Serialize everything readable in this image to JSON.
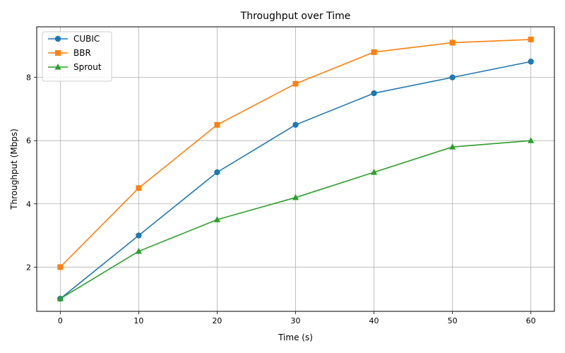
{
  "chart_data": {
    "type": "line",
    "title": "Throughput over Time",
    "xlabel": "Time (s)",
    "ylabel": "Throughput (Mbps)",
    "x": [
      0,
      10,
      20,
      30,
      40,
      50,
      60
    ],
    "xlim": [
      -3,
      63
    ],
    "ylim": [
      0.6,
      9.6
    ],
    "xticks": [
      0,
      10,
      20,
      30,
      40,
      50,
      60
    ],
    "yticks": [
      2,
      4,
      6,
      8
    ],
    "grid": true,
    "legend_position": "top-left",
    "series": [
      {
        "name": "CUBIC",
        "color": "#1f77b4",
        "marker": "circle",
        "values": [
          1.0,
          3.0,
          5.0,
          6.5,
          7.5,
          8.0,
          8.5
        ]
      },
      {
        "name": "BBR",
        "color": "#ff7f0e",
        "marker": "square",
        "values": [
          2.0,
          4.5,
          6.5,
          7.8,
          8.8,
          9.1,
          9.2
        ]
      },
      {
        "name": "Sprout",
        "color": "#2ca02c",
        "marker": "triangle",
        "values": [
          1.0,
          2.5,
          3.5,
          4.2,
          5.0,
          5.8,
          6.0
        ]
      }
    ]
  }
}
